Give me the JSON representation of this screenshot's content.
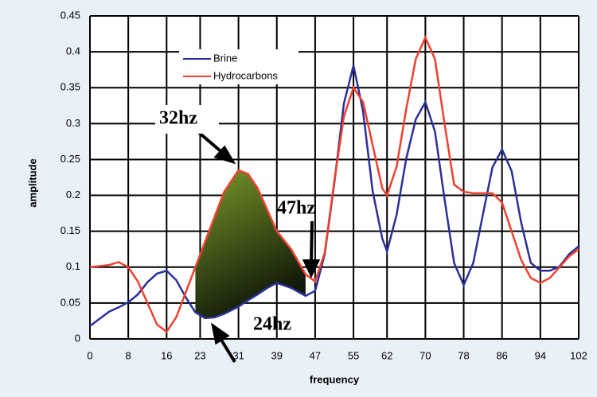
{
  "chart_data": {
    "type": "line",
    "xlabel": "frequency",
    "ylabel": "amplitude",
    "x": [
      0,
      4,
      6,
      8,
      10,
      12,
      14,
      16,
      18,
      20,
      22,
      24,
      26,
      28,
      31,
      33,
      35,
      37,
      39,
      42,
      45,
      47,
      49,
      51,
      53,
      55,
      57,
      59,
      61,
      62,
      64,
      66,
      68,
      70,
      72,
      74,
      76,
      78,
      80,
      82,
      84,
      86,
      88,
      90,
      92,
      94,
      96,
      98,
      100,
      102
    ],
    "series": [
      {
        "name": "Brine",
        "color": "#2a2f9a",
        "values": [
          0.018,
          0.038,
          0.044,
          0.051,
          0.062,
          0.079,
          0.091,
          0.095,
          0.082,
          0.058,
          0.037,
          0.029,
          0.03,
          0.035,
          0.045,
          0.054,
          0.062,
          0.071,
          0.078,
          0.071,
          0.06,
          0.067,
          0.118,
          0.217,
          0.328,
          0.381,
          0.317,
          0.206,
          0.14,
          0.122,
          0.173,
          0.251,
          0.306,
          0.33,
          0.289,
          0.195,
          0.106,
          0.075,
          0.106,
          0.173,
          0.239,
          0.264,
          0.234,
          0.162,
          0.106,
          0.095,
          0.095,
          0.101,
          0.118,
          0.129
        ]
      },
      {
        "name": "Hydrocarbons",
        "color": "#f0402f",
        "values": [
          0.1,
          0.103,
          0.107,
          0.1,
          0.08,
          0.05,
          0.02,
          0.01,
          0.03,
          0.065,
          0.1,
          0.135,
          0.17,
          0.205,
          0.235,
          0.23,
          0.21,
          0.18,
          0.15,
          0.125,
          0.09,
          0.08,
          0.12,
          0.22,
          0.31,
          0.35,
          0.33,
          0.27,
          0.21,
          0.2,
          0.24,
          0.32,
          0.39,
          0.42,
          0.39,
          0.3,
          0.215,
          0.205,
          0.203,
          0.203,
          0.203,
          0.19,
          0.15,
          0.11,
          0.085,
          0.078,
          0.085,
          0.1,
          0.115,
          0.125
        ]
      }
    ],
    "xlim": [
      0,
      102
    ],
    "xticks": [
      0,
      8,
      16,
      23,
      31,
      39,
      47,
      55,
      62,
      70,
      78,
      86,
      94,
      102
    ],
    "ylim": [
      0,
      0.45
    ],
    "yticks": [
      0,
      0.05,
      0.1,
      0.15,
      0.2,
      0.25,
      0.3,
      0.35,
      0.4,
      0.45
    ],
    "grid": true,
    "annotations": [
      "32hz",
      "47hz",
      "24hz"
    ]
  }
}
